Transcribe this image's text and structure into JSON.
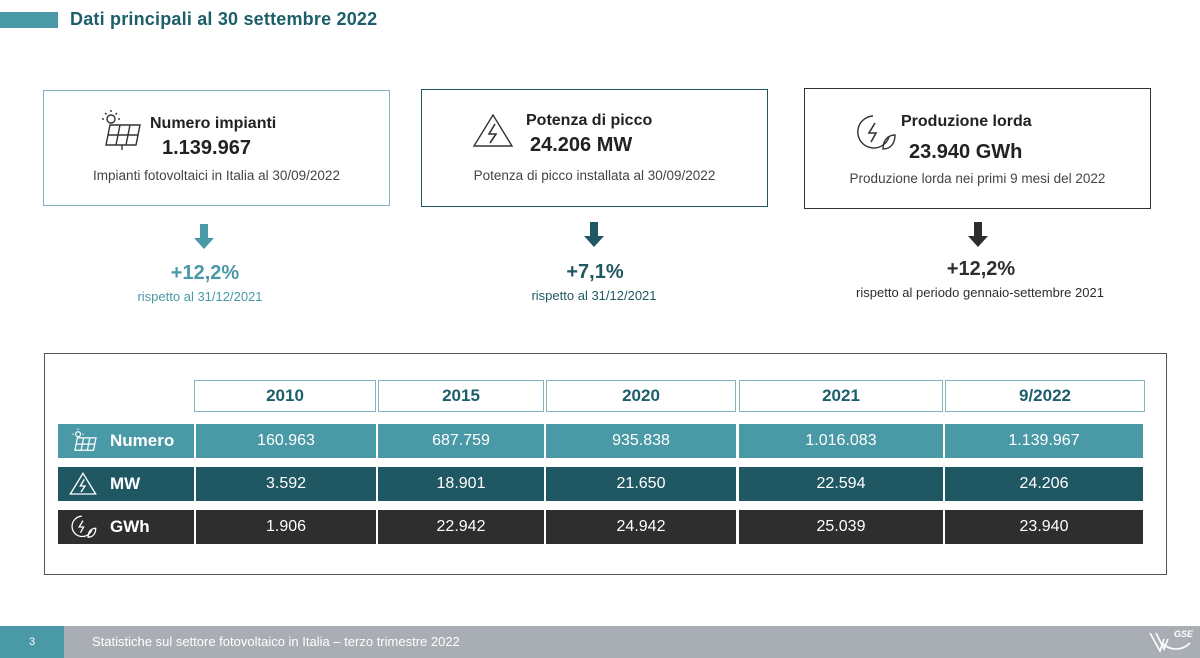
{
  "page_title": "Dati principali al 30 settembre 2022",
  "cards": [
    {
      "title": "Numero impianti",
      "value": "1.139.967",
      "desc": "Impianti fotovoltaici in Italia al 30/09/2022",
      "icon": "solar-panel-icon"
    },
    {
      "title": "Potenza di picco",
      "value": "24.206 MW",
      "desc": "Potenza di picco installata al 30/09/2022",
      "icon": "recycle-energy-icon"
    },
    {
      "title": "Produzione lorda",
      "value": "23.940 GWh",
      "desc": "Produzione lorda nei primi 9 mesi del 2022",
      "icon": "leaf-energy-icon"
    }
  ],
  "deltas": [
    {
      "value": "+12,2%",
      "note": "rispetto al 31/12/2021",
      "color": "#4a99a6"
    },
    {
      "value": "+7,1%",
      "note": "rispetto al 31/12/2021",
      "color": "#1f5763"
    },
    {
      "value": "+12,2%",
      "note": "rispetto al periodo gennaio-settembre 2021",
      "color": "#2e2e2e"
    }
  ],
  "table": {
    "headers": [
      "2010",
      "2015",
      "2020",
      "2021",
      "9/2022"
    ],
    "rows": [
      {
        "label": "Numero",
        "icon": "solar-panel-icon",
        "values": [
          "160.963",
          "687.759",
          "935.838",
          "1.016.083",
          "1.139.967"
        ]
      },
      {
        "label": "MW",
        "icon": "recycle-energy-icon",
        "values": [
          "3.592",
          "18.901",
          "21.650",
          "22.594",
          "24.206"
        ]
      },
      {
        "label": "GWh",
        "icon": "leaf-energy-icon",
        "values": [
          "1.906",
          "22.942",
          "24.942",
          "25.039",
          "23.940"
        ]
      }
    ]
  },
  "footer": {
    "page_number": "3",
    "text": "Statistiche sul settore fotovoltaico in Italia – terzo trimestre 2022",
    "logo": "GSE"
  },
  "colors": {
    "accent": "#4a99a6",
    "dark_teal": "#1f5763",
    "charcoal": "#2e2e2e",
    "title": "#1d5e6b"
  }
}
